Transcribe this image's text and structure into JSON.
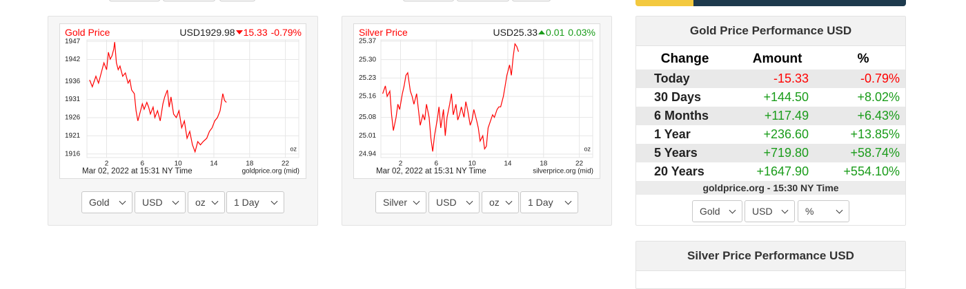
{
  "chart_data": [
    {
      "type": "line",
      "title": "Gold Price",
      "price_label": "USD1929.98",
      "change": "15.33",
      "change_percent": "-0.79%",
      "change_direction": "down",
      "color": "#ff0000",
      "x": [
        0.1,
        0.4,
        0.8,
        1.1,
        1.4,
        1.7,
        2.0,
        2.2,
        2.4,
        2.6,
        2.8,
        2.9,
        3.1,
        3.3,
        3.5,
        3.8,
        4.1,
        4.4,
        4.6,
        4.8,
        5.1,
        5.3,
        5.5,
        5.8,
        6.0,
        6.2,
        6.5,
        6.7,
        6.9,
        7.2,
        7.4,
        7.7,
        8.0,
        8.3,
        8.5,
        8.8,
        9.0,
        9.2,
        9.5,
        9.8,
        10.1,
        10.4,
        10.7,
        11.0,
        11.3,
        11.6,
        11.9,
        12.2,
        12.5,
        12.8,
        13.2,
        13.5,
        13.8,
        14.1,
        14.4,
        14.7,
        15.0,
        15.2,
        15.4
      ],
      "values": [
        1936.4,
        1934.5,
        1937.4,
        1935.5,
        1938.3,
        1941.1,
        1939.2,
        1944.0,
        1942.1,
        1943.0,
        1944.9,
        1946.8,
        1941.1,
        1939.2,
        1940.2,
        1937.4,
        1938.3,
        1935.5,
        1936.4,
        1933.6,
        1932.6,
        1927.9,
        1925.1,
        1927.9,
        1929.8,
        1928.3,
        1930.2,
        1928.9,
        1927.0,
        1928.9,
        1926.0,
        1927.9,
        1925.1,
        1929.8,
        1931.7,
        1933.6,
        1928.9,
        1931.7,
        1927.0,
        1926.0,
        1927.9,
        1923.2,
        1925.1,
        1920.3,
        1922.2,
        1918.5,
        1916.6,
        1919.4,
        1918.5,
        1919.4,
        1920.3,
        1922.2,
        1923.2,
        1925.1,
        1926.0,
        1927.9,
        1932.6,
        1930.7,
        1930.2
      ],
      "xlim": [
        -0.2,
        23.5
      ],
      "xticks": [
        2,
        6,
        10,
        14,
        18,
        22
      ],
      "ylim": [
        1915,
        1947.4
      ],
      "yticks": [
        1947,
        1942,
        1936,
        1931,
        1926,
        1921,
        1916
      ],
      "grid": true,
      "unit_label": "oz",
      "caption": "Mar 02, 2022 at 15:31 NY Time",
      "source": "goldprice.org (mid)"
    },
    {
      "type": "line",
      "title": "Silver Price",
      "price_label": "USD25.33",
      "change": "0.01",
      "change_percent": "0.03%",
      "change_direction": "up",
      "color": "#ff0000",
      "x": [
        0.0,
        0.3,
        0.5,
        0.8,
        1.0,
        1.2,
        1.5,
        1.7,
        1.9,
        2.2,
        2.4,
        2.6,
        2.8,
        3.1,
        3.3,
        3.5,
        3.8,
        4.0,
        4.2,
        4.5,
        4.7,
        4.9,
        5.2,
        5.4,
        5.6,
        5.8,
        6.1,
        6.3,
        6.5,
        6.8,
        7.0,
        7.2,
        7.5,
        7.7,
        7.9,
        8.2,
        8.4,
        8.6,
        8.8,
        9.1,
        9.3,
        9.5,
        9.8,
        10.0,
        10.2,
        10.5,
        10.7,
        10.9,
        11.2,
        11.4,
        11.6,
        11.8,
        12.1,
        12.3,
        12.5,
        12.8,
        13.0,
        13.2,
        13.5,
        13.7,
        13.9,
        14.2,
        14.4,
        14.6,
        14.8,
        15.0,
        15.2
      ],
      "values": [
        25.17,
        25.2,
        25.16,
        25.18,
        25.09,
        25.03,
        25.08,
        25.13,
        25.11,
        25.17,
        25.2,
        25.24,
        25.25,
        25.18,
        25.16,
        25.13,
        25.17,
        25.11,
        25.05,
        25.09,
        25.07,
        25.13,
        25.08,
        25.0,
        24.95,
        25.01,
        25.07,
        25.12,
        25.04,
        25.11,
        25.01,
        25.08,
        25.13,
        25.17,
        25.09,
        25.13,
        25.07,
        25.09,
        25.12,
        25.08,
        25.14,
        25.11,
        25.05,
        25.07,
        25.11,
        25.07,
        25.04,
        24.99,
        25.01,
        24.96,
        24.97,
        25.04,
        25.07,
        25.09,
        25.08,
        25.11,
        25.12,
        25.12,
        25.16,
        25.2,
        25.24,
        25.28,
        25.24,
        25.31,
        25.36,
        25.35,
        25.33
      ],
      "xlim": [
        -0.2,
        23.5
      ],
      "xticks": [
        2,
        6,
        10,
        14,
        18,
        22
      ],
      "ylim": [
        24.927,
        25.375
      ],
      "yticks": [
        25.37,
        {
          "value": 25.3,
          "label": "25.30"
        },
        25.23,
        25.16,
        25.08,
        25.01,
        24.94
      ],
      "grid": true,
      "unit_label": "oz",
      "caption": "Mar 02, 2022 at 15:31 NY Time",
      "source": "silverprice.org (mid)"
    }
  ],
  "chart_controls": [
    [
      "Gold",
      "USD",
      "oz",
      "1 Day"
    ],
    [
      "Silver",
      "USD",
      "oz",
      "1 Day"
    ]
  ],
  "gold_performance": {
    "title": "Gold Price Performance USD",
    "columns": [
      "Change",
      "Amount",
      "%"
    ],
    "rows": [
      [
        "Today",
        "-15.33",
        "-0.79%"
      ],
      [
        "30 Days",
        "+144.50",
        "+8.02%"
      ],
      [
        "6 Months",
        "+117.49",
        "+6.43%"
      ],
      [
        "1 Year",
        "+236.60",
        "+13.85%"
      ],
      [
        "5 Years",
        "+719.80",
        "+58.74%"
      ],
      [
        "20 Years",
        "+1647.90",
        "+554.10%"
      ]
    ],
    "footer": "goldprice.org - 15:30 NY Time",
    "selects": [
      "Gold",
      "USD",
      "%"
    ]
  },
  "silver_performance": {
    "title": "Silver Price Performance USD"
  }
}
